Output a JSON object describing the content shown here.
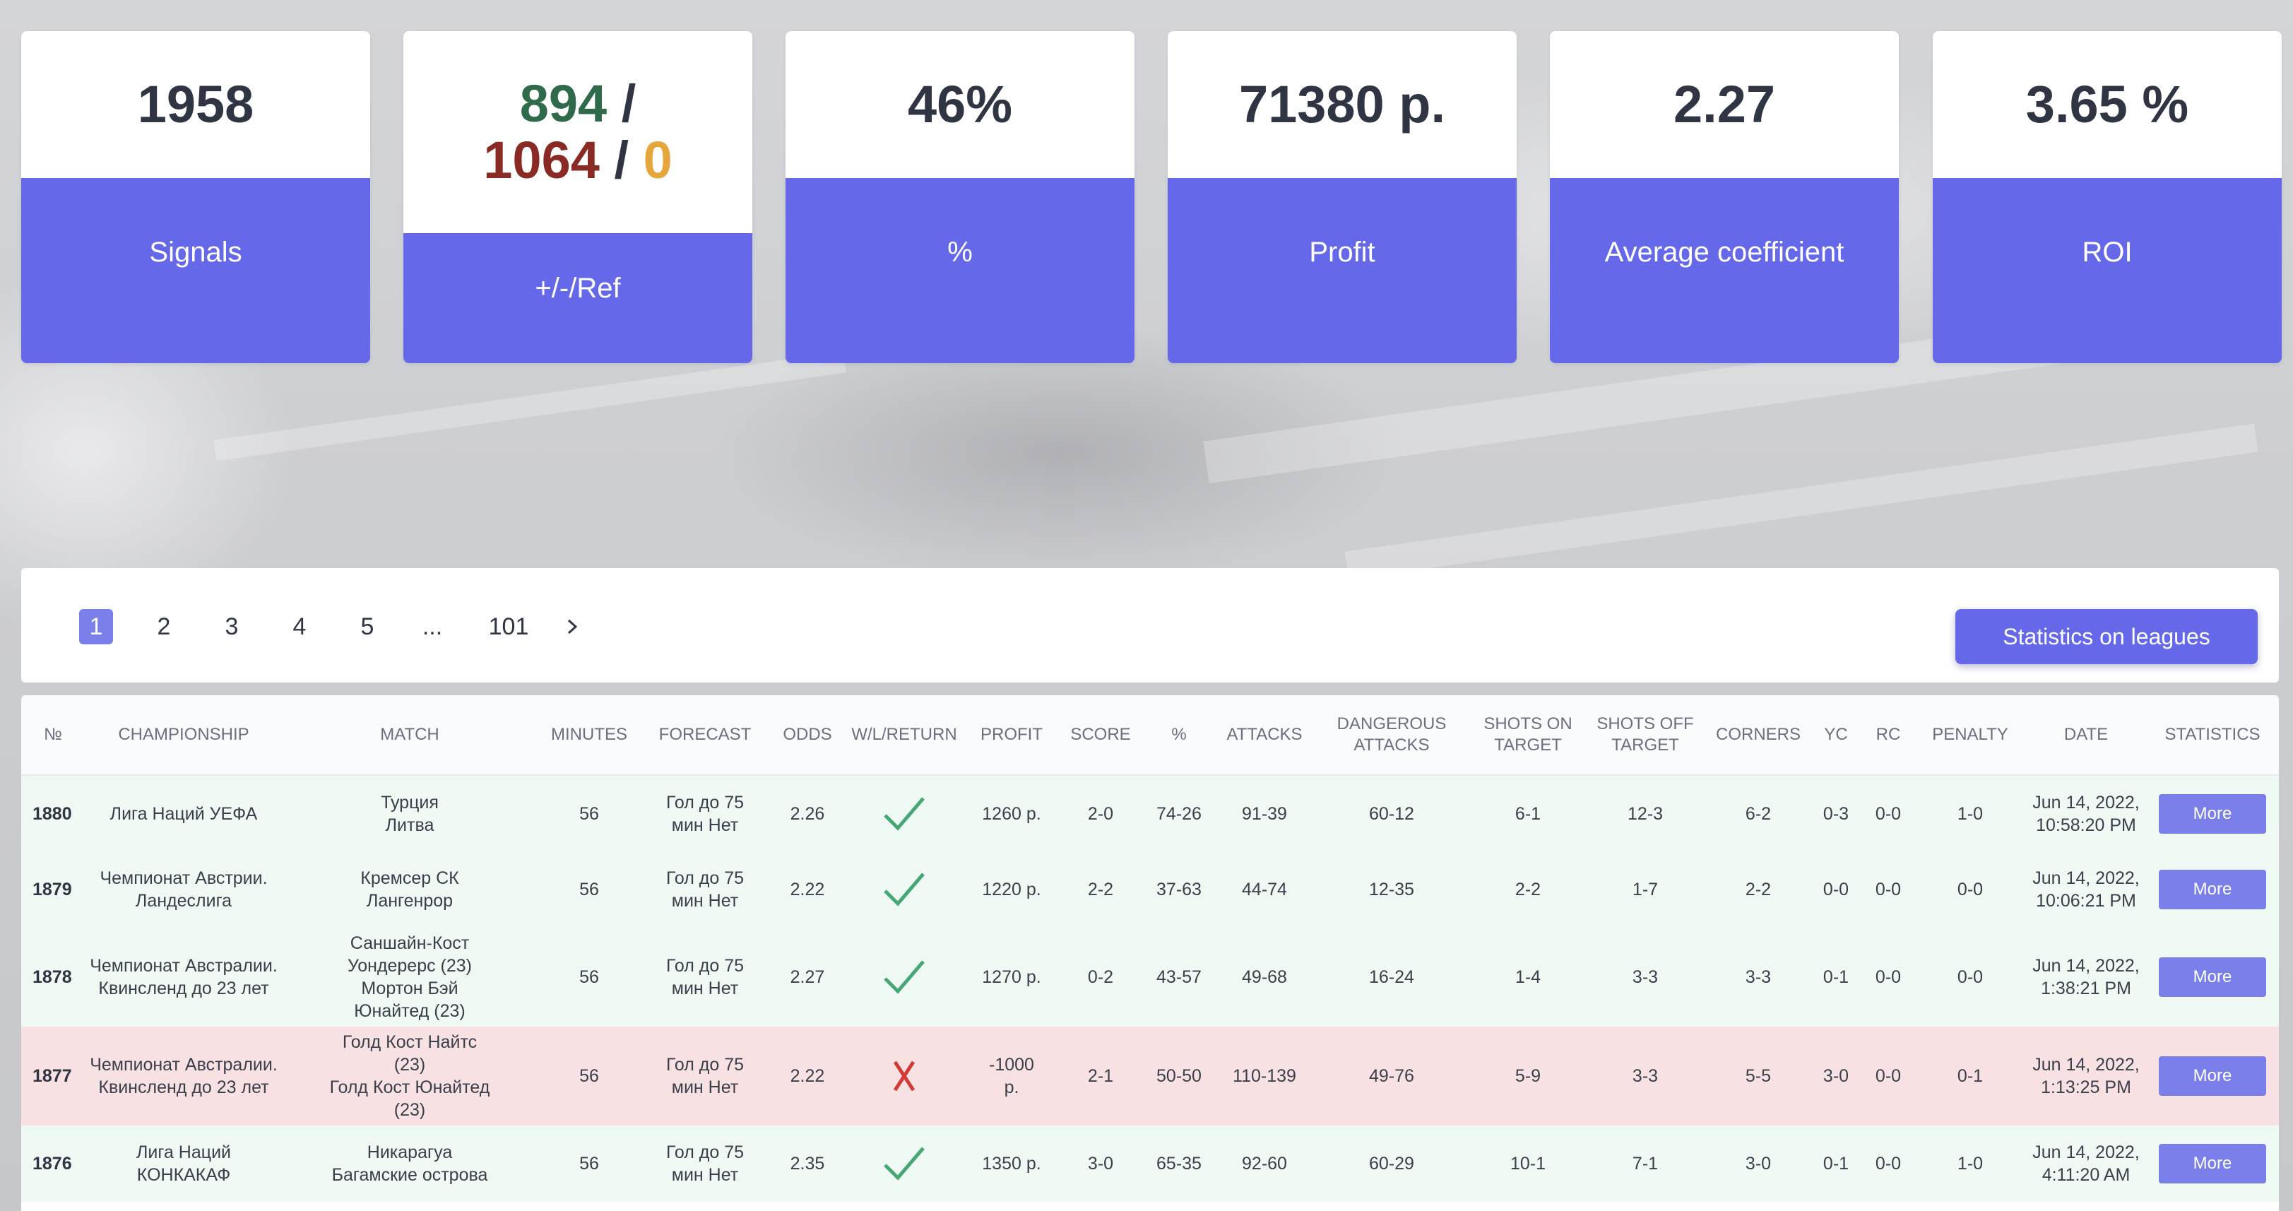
{
  "stats": [
    {
      "value": "1958",
      "label": "Signals"
    },
    {
      "value_parts": {
        "wins": "894",
        "sep1": " /",
        "losses": "1064",
        "sep2": " / ",
        "refunds": "0"
      },
      "label": "+/-/Ref"
    },
    {
      "value": "46%",
      "label": "%"
    },
    {
      "value": "71380 р.",
      "label": "Profit"
    },
    {
      "value": "2.27",
      "label": "Average coefficient"
    },
    {
      "value": "3.65 %",
      "label": "ROI"
    }
  ],
  "pagination": {
    "pages": [
      "1",
      "2",
      "3",
      "4",
      "5",
      "...",
      "101"
    ],
    "active": "1",
    "next_icon": "chevron-right-icon"
  },
  "leagues_button": "Statistics on leagues",
  "table": {
    "columns": [
      "№",
      "CHAMPIONSHIP",
      "MATCH",
      "MINUTES",
      "FORECAST",
      "ODDS",
      "W/L/RETURN",
      "PROFIT",
      "SCORE",
      "%",
      "ATTACKS",
      "DANGEROUS ATTACKS",
      "SHOTS ON TARGET",
      "SHOTS OFF TARGET",
      "CORNERS",
      "YC",
      "RC",
      "PENALTY",
      "DATE",
      "STATISTICS"
    ],
    "rows": [
      {
        "num": "1880",
        "championship": "Лига Наций УЕФА",
        "match": "Турция\nЛитва",
        "minutes": "56",
        "forecast": "Гол до 75\nмин Нет",
        "odds": "2.26",
        "result": "win",
        "profit": "1260 р.",
        "score": "2-0",
        "pct": "74-26",
        "attacks": "91-39",
        "dangerous": "60-12",
        "shots_on": "6-1",
        "shots_off": "12-3",
        "corners": "6-2",
        "yc": "0-3",
        "rc": "0-0",
        "penalty": "1-0",
        "date": "Jun 14, 2022,\n10:58:20 PM",
        "button": "More"
      },
      {
        "num": "1879",
        "championship": "Чемпионат Австрии.\nЛандеслига",
        "match": "Кремсер СК\nЛангенрор",
        "minutes": "56",
        "forecast": "Гол до 75\nмин Нет",
        "odds": "2.22",
        "result": "win",
        "profit": "1220 р.",
        "score": "2-2",
        "pct": "37-63",
        "attacks": "44-74",
        "dangerous": "12-35",
        "shots_on": "2-2",
        "shots_off": "1-7",
        "corners": "2-2",
        "yc": "0-0",
        "rc": "0-0",
        "penalty": "0-0",
        "date": "Jun 14, 2022,\n10:06:21 PM",
        "button": "More"
      },
      {
        "num": "1878",
        "championship": "Чемпионат Австралии.\nКвинсленд до 23 лет",
        "match": "Саншайн-Кост\nУондерерс (23)\nМортон Бэй\nЮнайтед (23)",
        "minutes": "56",
        "forecast": "Гол до 75\nмин Нет",
        "odds": "2.27",
        "result": "win",
        "profit": "1270 р.",
        "score": "0-2",
        "pct": "43-57",
        "attacks": "49-68",
        "dangerous": "16-24",
        "shots_on": "1-4",
        "shots_off": "3-3",
        "corners": "3-3",
        "yc": "0-1",
        "rc": "0-0",
        "penalty": "0-0",
        "date": "Jun 14, 2022,\n1:38:21 PM",
        "button": "More"
      },
      {
        "num": "1877",
        "championship": "Чемпионат Австралии.\nКвинсленд до 23 лет",
        "match": "Голд Кост Найтс\n(23)\nГолд Кост Юнайтед\n(23)",
        "minutes": "56",
        "forecast": "Гол до 75\nмин Нет",
        "odds": "2.22",
        "result": "loss",
        "profit": "-1000\nр.",
        "score": "2-1",
        "pct": "50-50",
        "attacks": "110-139",
        "dangerous": "49-76",
        "shots_on": "5-9",
        "shots_off": "3-3",
        "corners": "5-5",
        "yc": "3-0",
        "rc": "0-0",
        "penalty": "0-1",
        "date": "Jun 14, 2022,\n1:13:25 PM",
        "button": "More"
      },
      {
        "num": "1876",
        "championship": "Лига Наций КОНКАКАФ",
        "match": "Никарагуа\nБагамские острова",
        "minutes": "56",
        "forecast": "Гол до 75\nмин Нет",
        "odds": "2.35",
        "result": "win",
        "profit": "1350 р.",
        "score": "3-0",
        "pct": "65-35",
        "attacks": "92-60",
        "dangerous": "60-29",
        "shots_on": "10-1",
        "shots_off": "7-1",
        "corners": "3-0",
        "yc": "0-1",
        "rc": "0-0",
        "penalty": "1-0",
        "date": "Jun 14, 2022,\n4:11:20 AM",
        "button": "More"
      }
    ]
  },
  "colors": {
    "accent": "#6568e8",
    "win_row": "#eef9f3",
    "loss_row": "#f8e1e2",
    "check": "#47a774",
    "cross": "#d33a35",
    "wins_text": "#2f6b4a",
    "losses_text": "#8a2a24",
    "refunds_text": "#e5a63b"
  }
}
